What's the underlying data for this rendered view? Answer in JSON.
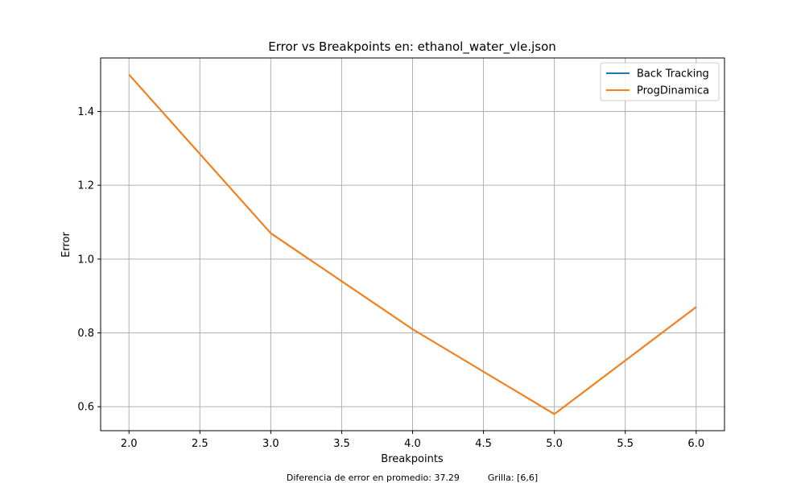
{
  "chart_data": {
    "type": "line",
    "title": "Error vs Breakpoints en: ethanol_water_vle.json",
    "xlabel": "Breakpoints",
    "ylabel": "Error",
    "xlim": [
      1.8,
      6.2
    ],
    "ylim": [
      0.535,
      1.545
    ],
    "xticks": [
      2.0,
      2.5,
      3.0,
      3.5,
      4.0,
      4.5,
      5.0,
      5.5,
      6.0
    ],
    "xtick_labels": [
      "2.0",
      "2.5",
      "3.0",
      "3.5",
      "4.0",
      "4.5",
      "5.0",
      "5.5",
      "6.0"
    ],
    "yticks": [
      0.6,
      0.8,
      1.0,
      1.2,
      1.4
    ],
    "ytick_labels": [
      "0.6",
      "0.8",
      "1.0",
      "1.2",
      "1.4"
    ],
    "grid": true,
    "legend_position": "top-right",
    "x": [
      2,
      3,
      4,
      5,
      6
    ],
    "series": [
      {
        "name": "Back Tracking",
        "color": "#1f77b4",
        "values": [
          1.5,
          1.07,
          0.81,
          0.58,
          0.87
        ]
      },
      {
        "name": "ProgDinamica",
        "color": "#ff7f0e",
        "values": [
          1.5,
          1.07,
          0.81,
          0.58,
          0.87
        ]
      }
    ]
  },
  "footer": {
    "text": "Diferencia de error en promedio: 37.29          Grilla: [6,6]"
  }
}
